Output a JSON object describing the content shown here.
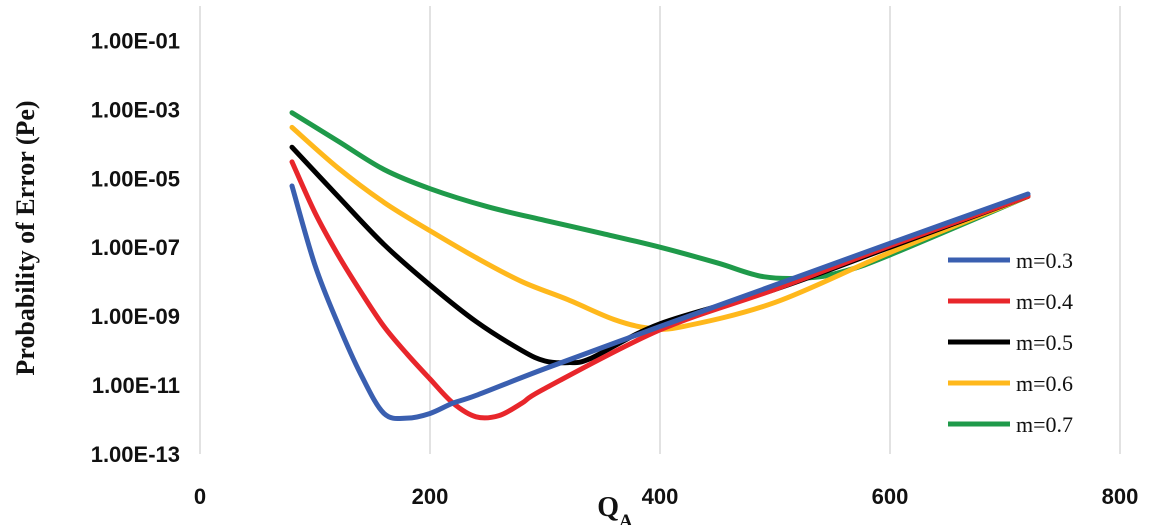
{
  "chart_data": {
    "type": "line",
    "title": "",
    "xlabel_main": "Q",
    "xlabel_sub": "A",
    "ylabel": "Probability of Error (Pe)",
    "xlim": [
      0,
      800
    ],
    "x_ticks": [
      0,
      200,
      400,
      600,
      800
    ],
    "x_tick_labels": [
      "0",
      "200",
      "400",
      "600",
      "800"
    ],
    "yscale": "log",
    "ylim": [
      1e-13,
      1
    ],
    "y_ticks": [
      1e-13,
      1e-11,
      1e-09,
      1e-07,
      1e-05,
      0.001,
      0.1
    ],
    "y_tick_labels": [
      "1.00E-13",
      "1.00E-11",
      "1.00E-09",
      "1.00E-07",
      "1.00E-05",
      "1.00E-03",
      "1.00E-01"
    ],
    "grid": "vertical",
    "legend_position": "right",
    "series": [
      {
        "name": "m=0.3",
        "color": "#3a5fb0",
        "x": [
          80,
          100,
          120,
          140,
          160,
          180,
          200,
          220,
          240,
          300,
          400,
          500,
          600,
          720
        ],
        "y": [
          6e-06,
          3e-08,
          6e-10,
          2e-11,
          1.5e-12,
          1.1e-12,
          1.5e-12,
          3e-12,
          5e-12,
          3e-11,
          5e-10,
          8e-09,
          1.3e-07,
          3.5e-06
        ]
      },
      {
        "name": "m=0.4",
        "color": "#e8262b",
        "x": [
          80,
          100,
          120,
          140,
          160,
          180,
          200,
          220,
          240,
          260,
          280,
          300,
          400,
          500,
          600,
          720
        ],
        "y": [
          3e-05,
          1e-06,
          6e-08,
          5e-09,
          5e-10,
          8e-11,
          1.5e-11,
          3e-12,
          1.2e-12,
          1.3e-12,
          3e-12,
          8e-12,
          4e-10,
          6e-09,
          1.1e-07,
          3e-06
        ]
      },
      {
        "name": "m=0.5",
        "color": "#000000",
        "x": [
          80,
          120,
          160,
          200,
          240,
          280,
          300,
          320,
          340,
          400,
          500,
          600,
          720
        ],
        "y": [
          8e-05,
          3e-06,
          1.2e-07,
          8e-09,
          7e-10,
          1e-10,
          5e-11,
          4.5e-11,
          6e-11,
          6e-10,
          6e-09,
          1e-07,
          3e-06
        ]
      },
      {
        "name": "m=0.6",
        "color": "#ffb81c",
        "x": [
          80,
          120,
          160,
          200,
          240,
          280,
          320,
          360,
          390,
          420,
          500,
          600,
          720
        ],
        "y": [
          0.0003,
          2e-05,
          2e-06,
          3e-07,
          5e-08,
          1e-08,
          3e-09,
          8e-10,
          4.5e-10,
          5e-10,
          2.5e-09,
          7e-08,
          3e-06
        ]
      },
      {
        "name": "m=0.7",
        "color": "#1f9a4a",
        "x": [
          80,
          120,
          160,
          200,
          250,
          300,
          350,
          400,
          450,
          490,
          530,
          560,
          600,
          720
        ],
        "y": [
          0.0008,
          0.00012,
          1.8e-05,
          5e-06,
          1.5e-06,
          6e-07,
          2.5e-07,
          1e-07,
          3.5e-08,
          1.4e-08,
          1.3e-08,
          2e-08,
          6e-08,
          3e-06
        ]
      }
    ]
  }
}
